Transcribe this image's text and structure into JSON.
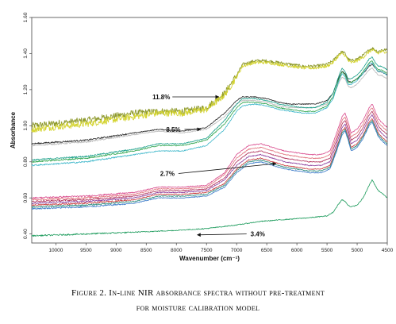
{
  "chart_data": {
    "type": "line",
    "title": "",
    "xlabel": "Wavenumber (cm⁻¹)",
    "ylabel": "Absorbance",
    "x_reversed": true,
    "xlim": [
      10400,
      4500
    ],
    "ylim": [
      0.35,
      1.6
    ],
    "x_ticks": [
      10000,
      9500,
      9000,
      8500,
      8000,
      7500,
      7000,
      6500,
      6000,
      5500,
      5000,
      4500
    ],
    "x_tick_labels": [
      "10000",
      "9500",
      "9000",
      "8500",
      "8000",
      "7500",
      "7000",
      "6500",
      "6000",
      "5500",
      "5000",
      "4500"
    ],
    "y_ticks": [
      0.4,
      0.6,
      0.8,
      1.0,
      1.2,
      1.4,
      1.6
    ],
    "y_tick_labels": [
      "0.40",
      "0.60",
      "0.80",
      "1.00",
      "1.20",
      "1.40",
      "1.60"
    ],
    "grid": false,
    "legend": "none",
    "annotations": [
      {
        "text": "11.8%",
        "text_x": 8250,
        "text_y": 1.16,
        "target_x": 7300,
        "target_y": 1.16
      },
      {
        "text": "8.5%",
        "text_x": 8050,
        "text_y": 0.98,
        "target_x": 7600,
        "target_y": 0.98
      },
      {
        "text": "2.7%",
        "text_x": 8150,
        "text_y": 0.735,
        "target_x": 6350,
        "target_y": 0.79
      },
      {
        "text": "3.4%",
        "text_x": 6650,
        "text_y": 0.4,
        "target_x": 7650,
        "target_y": 0.395
      }
    ],
    "series": [
      {
        "color": "#8f9a2e",
        "x": [
          10400,
          9500,
          8700,
          8300,
          7900,
          7500,
          7200,
          7000,
          6900,
          6700,
          6500,
          6300,
          6100,
          5900,
          5700,
          5500,
          5400,
          5300,
          5250,
          5200,
          5150,
          5100,
          5000,
          4900,
          4800,
          4750,
          4700,
          4650,
          4600,
          4500
        ],
        "y": [
          1.0,
          1.03,
          1.07,
          1.08,
          1.08,
          1.1,
          1.18,
          1.28,
          1.34,
          1.36,
          1.36,
          1.35,
          1.34,
          1.33,
          1.33,
          1.34,
          1.36,
          1.4,
          1.41,
          1.4,
          1.37,
          1.36,
          1.37,
          1.39,
          1.42,
          1.43,
          1.42,
          1.41,
          1.42,
          1.42
        ]
      },
      {
        "color": "#d4d431",
        "x": [
          10400,
          9500,
          8700,
          8300,
          7900,
          7500,
          7200,
          7000,
          6900,
          6700,
          6500,
          6300,
          6100,
          5900,
          5700,
          5500,
          5400,
          5300,
          5250,
          5200,
          5150,
          5100,
          5000,
          4900,
          4800,
          4750,
          4700,
          4650,
          4600,
          4500
        ],
        "y": [
          0.98,
          1.01,
          1.05,
          1.07,
          1.07,
          1.09,
          1.17,
          1.27,
          1.33,
          1.35,
          1.35,
          1.34,
          1.33,
          1.32,
          1.32,
          1.33,
          1.35,
          1.39,
          1.4,
          1.39,
          1.36,
          1.35,
          1.36,
          1.38,
          1.41,
          1.42,
          1.41,
          1.4,
          1.41,
          1.41
        ]
      },
      {
        "color": "#222222",
        "x": [
          10400,
          9500,
          8700,
          8300,
          7900,
          7500,
          7200,
          7000,
          6900,
          6700,
          6500,
          6300,
          6100,
          5900,
          5700,
          5500,
          5400,
          5300,
          5250,
          5200,
          5150,
          5100,
          5000,
          4900,
          4800,
          4750,
          4700,
          4650,
          4600,
          4500
        ],
        "y": [
          0.9,
          0.92,
          0.96,
          0.98,
          0.97,
          0.99,
          1.07,
          1.14,
          1.16,
          1.16,
          1.15,
          1.13,
          1.12,
          1.12,
          1.12,
          1.14,
          1.18,
          1.27,
          1.3,
          1.29,
          1.25,
          1.24,
          1.26,
          1.29,
          1.33,
          1.34,
          1.32,
          1.3,
          1.3,
          1.28
        ]
      },
      {
        "color": "#b9b9b9",
        "x": [
          10400,
          9500,
          8700,
          8300,
          7900,
          7500,
          7200,
          7000,
          6900,
          6700,
          6500,
          6300,
          6100,
          5900,
          5700,
          5500,
          5400,
          5300,
          5250,
          5200,
          5150,
          5100,
          5000,
          4900,
          4800,
          4750,
          4700,
          4650,
          4600,
          4500
        ],
        "y": [
          0.89,
          0.91,
          0.95,
          0.97,
          0.96,
          0.98,
          1.05,
          1.12,
          1.14,
          1.14,
          1.13,
          1.11,
          1.1,
          1.1,
          1.1,
          1.12,
          1.16,
          1.24,
          1.27,
          1.26,
          1.22,
          1.21,
          1.23,
          1.27,
          1.31,
          1.32,
          1.3,
          1.28,
          1.28,
          1.26
        ]
      },
      {
        "color": "#1aa08a",
        "x": [
          10400,
          9500,
          8700,
          8300,
          7900,
          7500,
          7200,
          7000,
          6900,
          6700,
          6500,
          6300,
          6100,
          5900,
          5700,
          5500,
          5400,
          5300,
          5250,
          5200,
          5150,
          5100,
          5000,
          4900,
          4800,
          4750,
          4700,
          4650,
          4600,
          4500
        ],
        "y": [
          0.81,
          0.83,
          0.87,
          0.9,
          0.9,
          0.93,
          1.03,
          1.12,
          1.15,
          1.15,
          1.14,
          1.12,
          1.11,
          1.1,
          1.1,
          1.13,
          1.18,
          1.28,
          1.32,
          1.3,
          1.26,
          1.26,
          1.28,
          1.32,
          1.37,
          1.38,
          1.35,
          1.33,
          1.33,
          1.31
        ]
      },
      {
        "color": "#2aa34a",
        "x": [
          10400,
          9500,
          8700,
          8300,
          7900,
          7500,
          7200,
          7000,
          6900,
          6700,
          6500,
          6300,
          6100,
          5900,
          5700,
          5500,
          5400,
          5300,
          5250,
          5200,
          5150,
          5100,
          5000,
          4900,
          4800,
          4750,
          4700,
          4650,
          4600,
          4500
        ],
        "y": [
          0.8,
          0.82,
          0.86,
          0.89,
          0.89,
          0.92,
          1.01,
          1.1,
          1.13,
          1.13,
          1.12,
          1.1,
          1.09,
          1.08,
          1.08,
          1.11,
          1.16,
          1.26,
          1.3,
          1.28,
          1.24,
          1.24,
          1.26,
          1.3,
          1.35,
          1.36,
          1.33,
          1.31,
          1.31,
          1.29
        ]
      },
      {
        "color": "#3bb6c9",
        "x": [
          10400,
          9500,
          8700,
          8300,
          7900,
          7500,
          7200,
          7000,
          6900,
          6700,
          6500,
          6300,
          6100,
          5900,
          5700,
          5500,
          5400,
          5300,
          5250,
          5200,
          5150,
          5100,
          5000,
          4900,
          4800,
          4750,
          4700,
          4650,
          4600,
          4500
        ],
        "y": [
          0.78,
          0.8,
          0.84,
          0.86,
          0.86,
          0.89,
          0.98,
          1.08,
          1.11,
          1.12,
          1.11,
          1.09,
          1.08,
          1.07,
          1.07,
          1.1,
          1.15,
          1.25,
          1.29,
          1.27,
          1.23,
          1.23,
          1.25,
          1.29,
          1.34,
          1.35,
          1.32,
          1.3,
          1.3,
          1.28
        ]
      },
      {
        "color": "#d94a8c",
        "x": [
          10400,
          9500,
          8700,
          8300,
          7900,
          7500,
          7200,
          7000,
          6800,
          6600,
          6400,
          6200,
          6000,
          5800,
          5600,
          5450,
          5350,
          5250,
          5200,
          5150,
          5100,
          5000,
          4900,
          4800,
          4750,
          4700,
          4650,
          4600,
          4500
        ],
        "y": [
          0.6,
          0.61,
          0.63,
          0.66,
          0.66,
          0.67,
          0.74,
          0.84,
          0.89,
          0.9,
          0.88,
          0.86,
          0.85,
          0.84,
          0.84,
          0.86,
          0.95,
          1.05,
          1.07,
          1.02,
          0.96,
          0.98,
          1.03,
          1.1,
          1.12,
          1.08,
          1.04,
          1.02,
          0.99
        ]
      },
      {
        "color": "#e0707a",
        "x": [
          10400,
          9500,
          8700,
          8300,
          7900,
          7500,
          7200,
          7000,
          6800,
          6600,
          6400,
          6200,
          6000,
          5800,
          5600,
          5450,
          5350,
          5250,
          5200,
          5150,
          5100,
          5000,
          4900,
          4800,
          4750,
          4700,
          4650,
          4600,
          4500
        ],
        "y": [
          0.59,
          0.6,
          0.62,
          0.65,
          0.65,
          0.66,
          0.73,
          0.82,
          0.87,
          0.88,
          0.86,
          0.84,
          0.83,
          0.82,
          0.82,
          0.84,
          0.93,
          1.03,
          1.05,
          1.0,
          0.94,
          0.96,
          1.01,
          1.08,
          1.1,
          1.06,
          1.02,
          1.0,
          0.97
        ]
      },
      {
        "color": "#b0305a",
        "x": [
          10400,
          9500,
          8700,
          8300,
          7900,
          7500,
          7200,
          7000,
          6800,
          6600,
          6400,
          6200,
          6000,
          5800,
          5600,
          5450,
          5350,
          5250,
          5200,
          5150,
          5100,
          5000,
          4900,
          4800,
          4750,
          4700,
          4650,
          4600,
          4500
        ],
        "y": [
          0.58,
          0.59,
          0.61,
          0.64,
          0.64,
          0.65,
          0.71,
          0.8,
          0.85,
          0.86,
          0.84,
          0.82,
          0.81,
          0.8,
          0.8,
          0.82,
          0.91,
          1.01,
          1.03,
          0.98,
          0.92,
          0.94,
          0.99,
          1.06,
          1.08,
          1.04,
          1.0,
          0.98,
          0.95
        ]
      },
      {
        "color": "#8a3a9a",
        "x": [
          10400,
          9500,
          8700,
          8300,
          7900,
          7500,
          7200,
          7000,
          6800,
          6600,
          6400,
          6200,
          6000,
          5800,
          5600,
          5450,
          5350,
          5250,
          5200,
          5150,
          5100,
          5000,
          4900,
          4800,
          4750,
          4700,
          4650,
          4600,
          4500
        ],
        "y": [
          0.57,
          0.58,
          0.6,
          0.63,
          0.63,
          0.64,
          0.7,
          0.78,
          0.83,
          0.84,
          0.82,
          0.8,
          0.79,
          0.78,
          0.78,
          0.8,
          0.89,
          0.99,
          1.01,
          0.96,
          0.9,
          0.92,
          0.97,
          1.04,
          1.06,
          1.02,
          0.98,
          0.96,
          0.93
        ]
      },
      {
        "color": "#c83a3a",
        "x": [
          10400,
          9500,
          8700,
          8300,
          7900,
          7500,
          7200,
          7000,
          6800,
          6600,
          6400,
          6200,
          6000,
          5800,
          5600,
          5450,
          5350,
          5250,
          5200,
          5150,
          5100,
          5000,
          4900,
          4800,
          4750,
          4700,
          4650,
          4600,
          4500
        ],
        "y": [
          0.56,
          0.57,
          0.59,
          0.62,
          0.62,
          0.63,
          0.68,
          0.76,
          0.81,
          0.82,
          0.8,
          0.78,
          0.77,
          0.76,
          0.76,
          0.78,
          0.87,
          0.97,
          0.99,
          0.94,
          0.88,
          0.9,
          0.95,
          1.02,
          1.04,
          1.0,
          0.96,
          0.94,
          0.91
        ]
      },
      {
        "color": "#2a8a7a",
        "x": [
          10400,
          9500,
          8700,
          8300,
          7900,
          7500,
          7200,
          7000,
          6800,
          6600,
          6400,
          6200,
          6000,
          5800,
          5600,
          5450,
          5350,
          5250,
          5200,
          5150,
          5100,
          5000,
          4900,
          4800,
          4750,
          4700,
          4650,
          4600,
          4500
        ],
        "y": [
          0.55,
          0.56,
          0.58,
          0.61,
          0.61,
          0.62,
          0.67,
          0.75,
          0.8,
          0.81,
          0.79,
          0.77,
          0.76,
          0.75,
          0.75,
          0.77,
          0.86,
          0.96,
          0.98,
          0.93,
          0.87,
          0.89,
          0.94,
          1.01,
          1.03,
          0.99,
          0.95,
          0.93,
          0.9
        ]
      },
      {
        "color": "#3a7ac8",
        "x": [
          10400,
          9500,
          8700,
          8300,
          7900,
          7500,
          7200,
          7000,
          6800,
          6600,
          6400,
          6200,
          6000,
          5800,
          5600,
          5450,
          5350,
          5250,
          5200,
          5150,
          5100,
          5000,
          4900,
          4800,
          4750,
          4700,
          4650,
          4600,
          4500
        ],
        "y": [
          0.54,
          0.55,
          0.57,
          0.6,
          0.6,
          0.61,
          0.66,
          0.74,
          0.79,
          0.8,
          0.78,
          0.76,
          0.75,
          0.74,
          0.74,
          0.76,
          0.85,
          0.95,
          0.97,
          0.92,
          0.86,
          0.88,
          0.93,
          1.0,
          1.02,
          0.98,
          0.94,
          0.92,
          0.89
        ]
      },
      {
        "color": "#1a9a5a",
        "x": [
          10400,
          9500,
          8700,
          8000,
          7500,
          7000,
          6600,
          6200,
          5800,
          5500,
          5400,
          5300,
          5250,
          5200,
          5150,
          5100,
          5000,
          4900,
          4800,
          4750,
          4700,
          4650,
          4600,
          4500
        ],
        "y": [
          0.39,
          0.4,
          0.41,
          0.42,
          0.43,
          0.45,
          0.47,
          0.48,
          0.49,
          0.5,
          0.52,
          0.57,
          0.59,
          0.58,
          0.56,
          0.55,
          0.56,
          0.6,
          0.67,
          0.7,
          0.67,
          0.64,
          0.63,
          0.6
        ]
      }
    ]
  },
  "caption": {
    "label": "Figure 2.",
    "line1": "In-line NIR absorbance spectra without pre-treatment",
    "line2": "for moisture calibration model"
  }
}
